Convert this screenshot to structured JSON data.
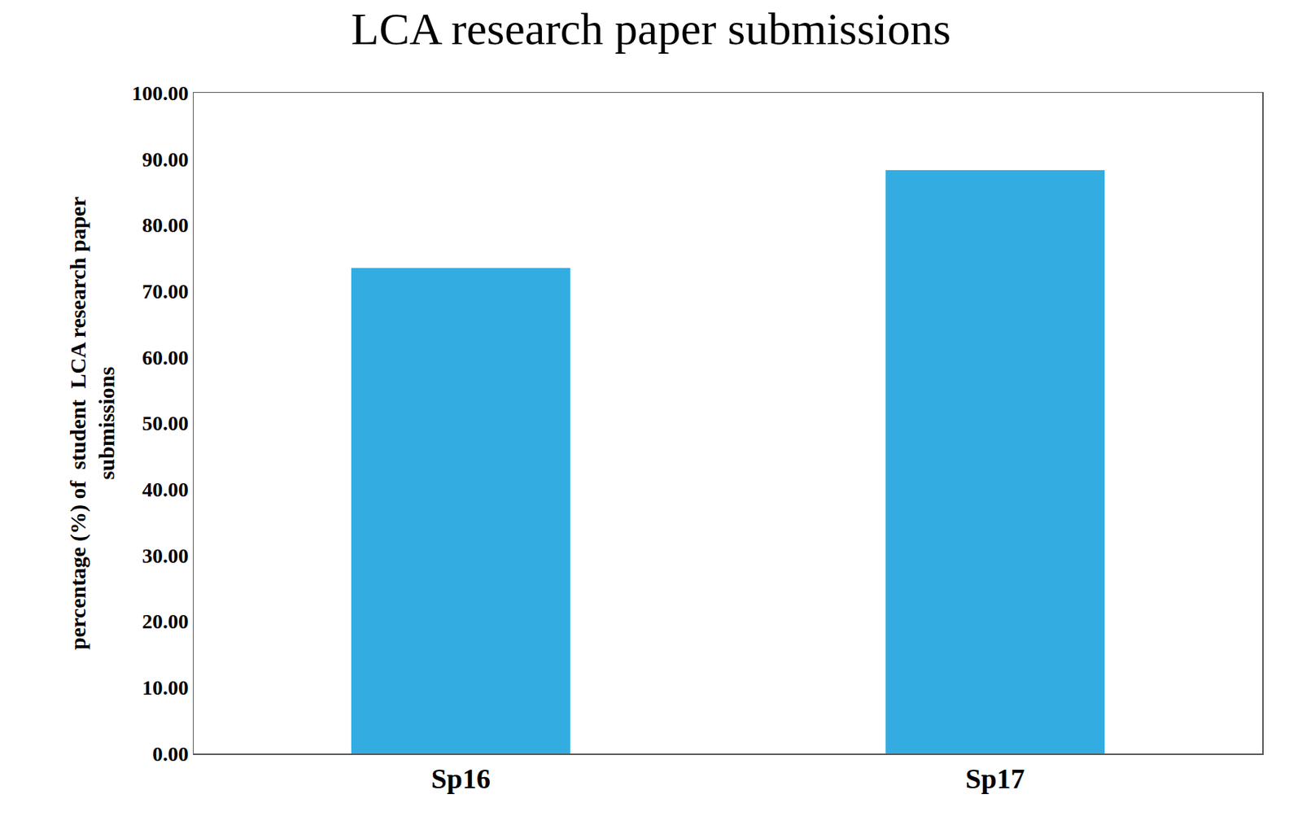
{
  "chart_data": {
    "type": "bar",
    "title": "LCA research paper submissions",
    "y_label": "percentage (%) of  student  LCA research paper\nsubmissions",
    "categories": [
      "Sp16",
      "Sp17"
    ],
    "values": [
      73.5,
      88.3
    ],
    "color": "#33ade1",
    "ylim": [
      0,
      100
    ],
    "yticks": [
      {
        "value": 0,
        "label": "0.00"
      },
      {
        "value": 10,
        "label": "10.00"
      },
      {
        "value": 20,
        "label": "20.00"
      },
      {
        "value": 30,
        "label": "30.00"
      },
      {
        "value": 40,
        "label": "40.00"
      },
      {
        "value": 50,
        "label": "50.00"
      },
      {
        "value": 60,
        "label": "60.00"
      },
      {
        "value": 70,
        "label": "70.00"
      },
      {
        "value": 80,
        "label": "80.00"
      },
      {
        "value": 90,
        "label": "90.00"
      },
      {
        "value": 100,
        "label": "100.00"
      }
    ],
    "grid": false,
    "data_labels": false
  }
}
